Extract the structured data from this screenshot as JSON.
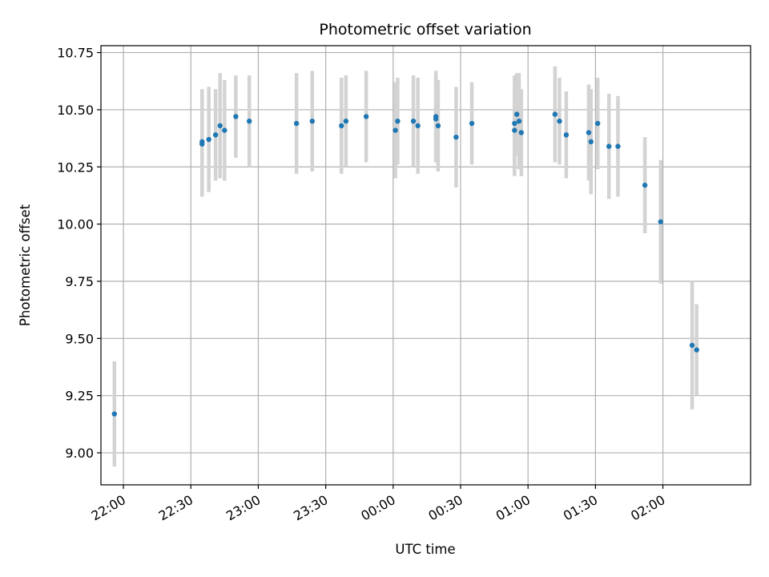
{
  "chart_data": {
    "type": "scatter",
    "title": "Photometric offset variation",
    "xlabel": "UTC time",
    "ylabel": "Photometric offset",
    "xlim": [
      "21:50",
      "02:39"
    ],
    "ylim": [
      8.86,
      10.78
    ],
    "grid": true,
    "x_ticks": [
      "22:00",
      "22:30",
      "23:00",
      "23:30",
      "00:00",
      "00:30",
      "01:00",
      "01:30",
      "02:00"
    ],
    "y_ticks": [
      "9.00",
      "9.25",
      "9.50",
      "9.75",
      "10.00",
      "10.25",
      "10.50",
      "10.75"
    ],
    "points": [
      {
        "x": "21:56",
        "y": 9.17,
        "err": 0.23
      },
      {
        "x": "22:35",
        "y": 10.35,
        "err": 0.23
      },
      {
        "x": "22:35",
        "y": 10.36,
        "err": 0.23
      },
      {
        "x": "22:38",
        "y": 10.37,
        "err": 0.23
      },
      {
        "x": "22:41",
        "y": 10.39,
        "err": 0.2
      },
      {
        "x": "22:43",
        "y": 10.43,
        "err": 0.23
      },
      {
        "x": "22:45",
        "y": 10.41,
        "err": 0.22
      },
      {
        "x": "22:50",
        "y": 10.47,
        "err": 0.18
      },
      {
        "x": "22:56",
        "y": 10.45,
        "err": 0.2
      },
      {
        "x": "23:17",
        "y": 10.44,
        "err": 0.22
      },
      {
        "x": "23:24",
        "y": 10.45,
        "err": 0.22
      },
      {
        "x": "23:37",
        "y": 10.43,
        "err": 0.21
      },
      {
        "x": "23:39",
        "y": 10.45,
        "err": 0.2
      },
      {
        "x": "23:48",
        "y": 10.47,
        "err": 0.2
      },
      {
        "x": "00:01",
        "y": 10.41,
        "err": 0.21
      },
      {
        "x": "00:02",
        "y": 10.45,
        "err": 0.19
      },
      {
        "x": "00:09",
        "y": 10.45,
        "err": 0.2
      },
      {
        "x": "00:11",
        "y": 10.43,
        "err": 0.21
      },
      {
        "x": "00:19",
        "y": 10.46,
        "err": 0.19
      },
      {
        "x": "00:19",
        "y": 10.47,
        "err": 0.2
      },
      {
        "x": "00:20",
        "y": 10.43,
        "err": 0.2
      },
      {
        "x": "00:28",
        "y": 10.38,
        "err": 0.22
      },
      {
        "x": "00:35",
        "y": 10.44,
        "err": 0.18
      },
      {
        "x": "00:54",
        "y": 10.44,
        "err": 0.21
      },
      {
        "x": "00:54",
        "y": 10.41,
        "err": 0.2
      },
      {
        "x": "00:55",
        "y": 10.48,
        "err": 0.18
      },
      {
        "x": "00:56",
        "y": 10.45,
        "err": 0.21
      },
      {
        "x": "00:57",
        "y": 10.4,
        "err": 0.19
      },
      {
        "x": "01:12",
        "y": 10.48,
        "err": 0.21
      },
      {
        "x": "01:14",
        "y": 10.45,
        "err": 0.19
      },
      {
        "x": "01:17",
        "y": 10.39,
        "err": 0.19
      },
      {
        "x": "01:27",
        "y": 10.4,
        "err": 0.21
      },
      {
        "x": "01:28",
        "y": 10.36,
        "err": 0.23
      },
      {
        "x": "01:31",
        "y": 10.44,
        "err": 0.2
      },
      {
        "x": "01:36",
        "y": 10.34,
        "err": 0.23
      },
      {
        "x": "01:40",
        "y": 10.34,
        "err": 0.22
      },
      {
        "x": "01:52",
        "y": 10.17,
        "err": 0.21
      },
      {
        "x": "01:59",
        "y": 10.01,
        "err": 0.27
      },
      {
        "x": "02:13",
        "y": 9.47,
        "err": 0.28
      },
      {
        "x": "02:15",
        "y": 9.45,
        "err": 0.2
      }
    ],
    "marker_color": "#1f77b4",
    "errorbar_color": "#d3d3d3",
    "grid_color": "#b0b0b0"
  }
}
